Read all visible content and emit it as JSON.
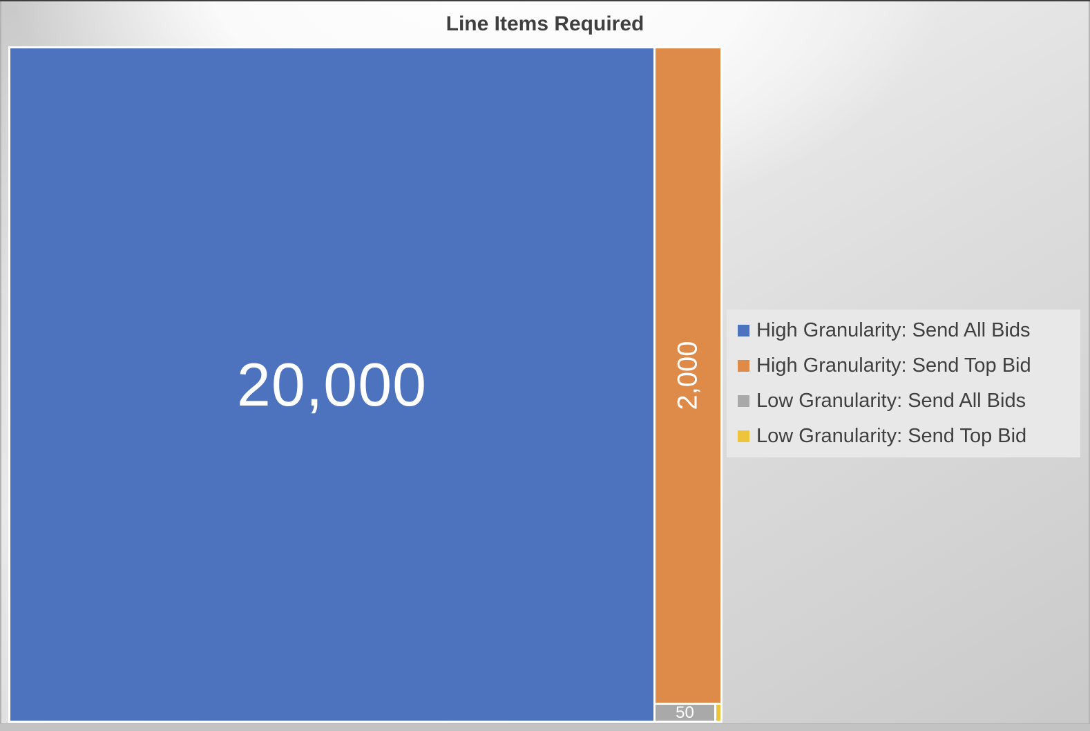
{
  "page": {
    "title": "Line Items Required"
  },
  "chart_data": {
    "type": "treemap",
    "title": "Line Items Required",
    "legend_position": "right",
    "data_label_color": "#FFFFFF",
    "series": [
      {
        "name": "High Granularity: Send All Bids",
        "value": 20000,
        "label": "20,000",
        "color": "#4E73BE"
      },
      {
        "name": "High Granularity: Send Top Bid",
        "value": 2000,
        "label": "2,000",
        "color": "#DE8A49"
      },
      {
        "name": "Low Granularity: Send All Bids",
        "value": 50,
        "label": "50",
        "color": "#A9A9A9"
      },
      {
        "name": "Low Granularity: Send Top Bid",
        "value": 5,
        "label": "",
        "color": "#EFC43D"
      }
    ]
  },
  "colors": {
    "title_text": "#3F3F3F",
    "legend_text": "#3F3F3F",
    "legend_background": "#E8E8E8",
    "cell_border": "#FFFFFF",
    "slide_top_edge": "#3E3E3E"
  }
}
